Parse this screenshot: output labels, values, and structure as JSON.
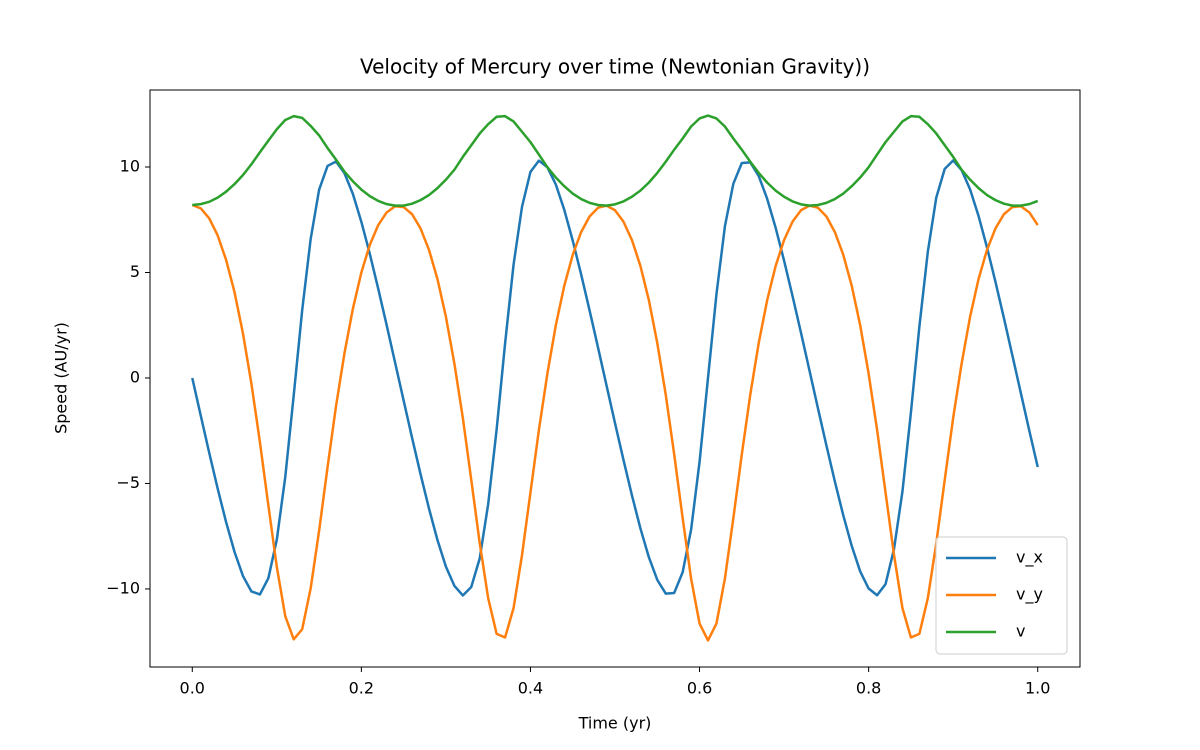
{
  "chart_data": {
    "type": "line",
    "title": "Velocity of Mercury over time (Newtonian Gravity))",
    "xlabel": "Time (yr)",
    "ylabel": "Speed (AU/yr)",
    "x": [
      0,
      0.01,
      0.02,
      0.03,
      0.04,
      0.05,
      0.06,
      0.07,
      0.08,
      0.09,
      0.1,
      0.11,
      0.12,
      0.13,
      0.14,
      0.15,
      0.16,
      0.17,
      0.18,
      0.19,
      0.2,
      0.21,
      0.22,
      0.23,
      0.24,
      0.25,
      0.26,
      0.27,
      0.28,
      0.29,
      0.3,
      0.31,
      0.32,
      0.33,
      0.34,
      0.35,
      0.36,
      0.37,
      0.38,
      0.39,
      0.4,
      0.41,
      0.42,
      0.43,
      0.44,
      0.45,
      0.46,
      0.47,
      0.48,
      0.49,
      0.5,
      0.51,
      0.52,
      0.53,
      0.54,
      0.55,
      0.56,
      0.57,
      0.58,
      0.59,
      0.6,
      0.61,
      0.62,
      0.63,
      0.64,
      0.65,
      0.66,
      0.67,
      0.68,
      0.69,
      0.7,
      0.71,
      0.72,
      0.73,
      0.74,
      0.75,
      0.76,
      0.77,
      0.78,
      0.79,
      0.8,
      0.81,
      0.82,
      0.83,
      0.84,
      0.85,
      0.86,
      0.87,
      0.88,
      0.89,
      0.9,
      0.91,
      0.92,
      0.93,
      0.94,
      0.95,
      0.96,
      0.97,
      0.98,
      0.99,
      1
    ],
    "series": [
      {
        "name": "v_x",
        "color": "#1f77b4",
        "values": [
          0,
          -1.78,
          -3.54,
          -5.24,
          -6.83,
          -8.25,
          -9.39,
          -10.12,
          -10.26,
          -9.49,
          -7.66,
          -4.69,
          -0.82,
          3.21,
          6.58,
          8.92,
          10.05,
          10.26,
          9.71,
          8.72,
          7.4,
          5.88,
          4.22,
          2.49,
          0.71,
          -1.07,
          -2.84,
          -4.56,
          -6.19,
          -7.68,
          -8.94,
          -9.85,
          -10.31,
          -9.91,
          -8.55,
          -5.98,
          -2.44,
          1.64,
          5.37,
          8.11,
          9.77,
          10.3,
          9.99,
          9.17,
          7.97,
          6.51,
          4.9,
          3.19,
          1.43,
          -0.36,
          -2.14,
          -3.88,
          -5.56,
          -7.12,
          -8.49,
          -9.57,
          -10.22,
          -10.19,
          -9.21,
          -7.19,
          -3.98,
          0,
          3.97,
          7.19,
          9.21,
          10.19,
          10.22,
          9.57,
          8.49,
          7.12,
          5.56,
          3.88,
          2.14,
          0.36,
          -1.43,
          -3.19,
          -4.9,
          -6.51,
          -7.96,
          -9.17,
          -9.98,
          -10.3,
          -9.77,
          -8.11,
          -5.38,
          -1.64,
          2.43,
          5.98,
          8.55,
          9.91,
          10.31,
          9.85,
          8.94,
          7.68,
          6.19,
          4.56,
          2.84,
          1.07,
          -0.71,
          -2.49,
          -4.22
        ]
      },
      {
        "name": "v_y",
        "color": "#ff7f0e",
        "values": [
          8.2,
          8.04,
          7.57,
          6.76,
          5.6,
          4.06,
          2.1,
          -0.28,
          -3.04,
          -6.04,
          -8.96,
          -11.29,
          -12.39,
          -11.91,
          -9.98,
          -7.25,
          -4.23,
          -1.34,
          1.17,
          3.29,
          5.0,
          6.31,
          7.25,
          7.85,
          8.14,
          8.1,
          7.76,
          7.09,
          6.07,
          4.69,
          2.9,
          0.69,
          -1.89,
          -4.83,
          -7.83,
          -10.44,
          -12.13,
          -12.3,
          -10.91,
          -8.4,
          -5.43,
          -2.46,
          0.2,
          2.5,
          4.37,
          5.84,
          6.92,
          7.66,
          8.07,
          8.17,
          7.95,
          7.41,
          6.54,
          5.32,
          3.7,
          1.66,
          -0.79,
          -3.62,
          -6.64,
          -9.51,
          -11.64,
          -12.44,
          -11.64,
          -9.51,
          -6.64,
          -3.62,
          -0.79,
          1.66,
          3.69,
          5.31,
          6.54,
          7.41,
          7.95,
          8.17,
          8.07,
          7.66,
          6.92,
          5.84,
          4.37,
          2.5,
          0.2,
          -2.46,
          -5.43,
          -8.39,
          -10.91,
          -12.3,
          -12.13,
          -10.44,
          -7.83,
          -4.83,
          -1.89,
          0.69,
          2.9,
          4.69,
          6.07,
          7.09,
          7.76,
          8.1,
          8.14,
          7.85,
          7.25
        ]
      },
      {
        "name": "v",
        "color": "#2ca02c",
        "values": [
          8.2,
          8.24,
          8.35,
          8.55,
          8.83,
          9.19,
          9.62,
          10.13,
          10.7,
          11.25,
          11.79,
          12.23,
          12.41,
          12.33,
          11.95,
          11.5,
          10.9,
          10.35,
          9.78,
          9.32,
          8.93,
          8.62,
          8.39,
          8.24,
          8.17,
          8.17,
          8.26,
          8.43,
          8.67,
          9.0,
          9.4,
          9.87,
          10.48,
          11.03,
          11.59,
          12.03,
          12.38,
          12.41,
          12.16,
          11.67,
          11.18,
          10.59,
          9.99,
          9.5,
          9.09,
          8.74,
          8.48,
          8.3,
          8.2,
          8.17,
          8.23,
          8.37,
          8.59,
          8.88,
          9.26,
          9.72,
          10.25,
          10.82,
          11.35,
          11.92,
          12.3,
          12.44,
          12.3,
          11.92,
          11.35,
          10.82,
          10.25,
          9.72,
          9.26,
          8.88,
          8.59,
          8.37,
          8.23,
          8.17,
          8.2,
          8.3,
          8.48,
          8.74,
          9.09,
          9.5,
          9.99,
          10.59,
          11.18,
          11.67,
          12.16,
          12.41,
          12.38,
          12.03,
          11.59,
          11.03,
          10.48,
          9.87,
          9.4,
          9.0,
          8.67,
          8.43,
          8.26,
          8.17,
          8.17,
          8.24,
          8.39
        ]
      }
    ],
    "xlim": [
      -0.05,
      1.05
    ],
    "xticks": [
      {
        "value": 0,
        "label": "0.0"
      },
      0.2,
      0.4,
      0.6,
      0.8,
      {
        "value": 1,
        "label": "1.0"
      }
    ],
    "ylim": [
      -13.7,
      13.65
    ],
    "yticks": [
      {
        "value": -10,
        "label": "−10"
      },
      {
        "value": -5,
        "label": "−5"
      },
      0,
      5,
      10
    ],
    "grid": false,
    "legend_loc": "lower right"
  }
}
